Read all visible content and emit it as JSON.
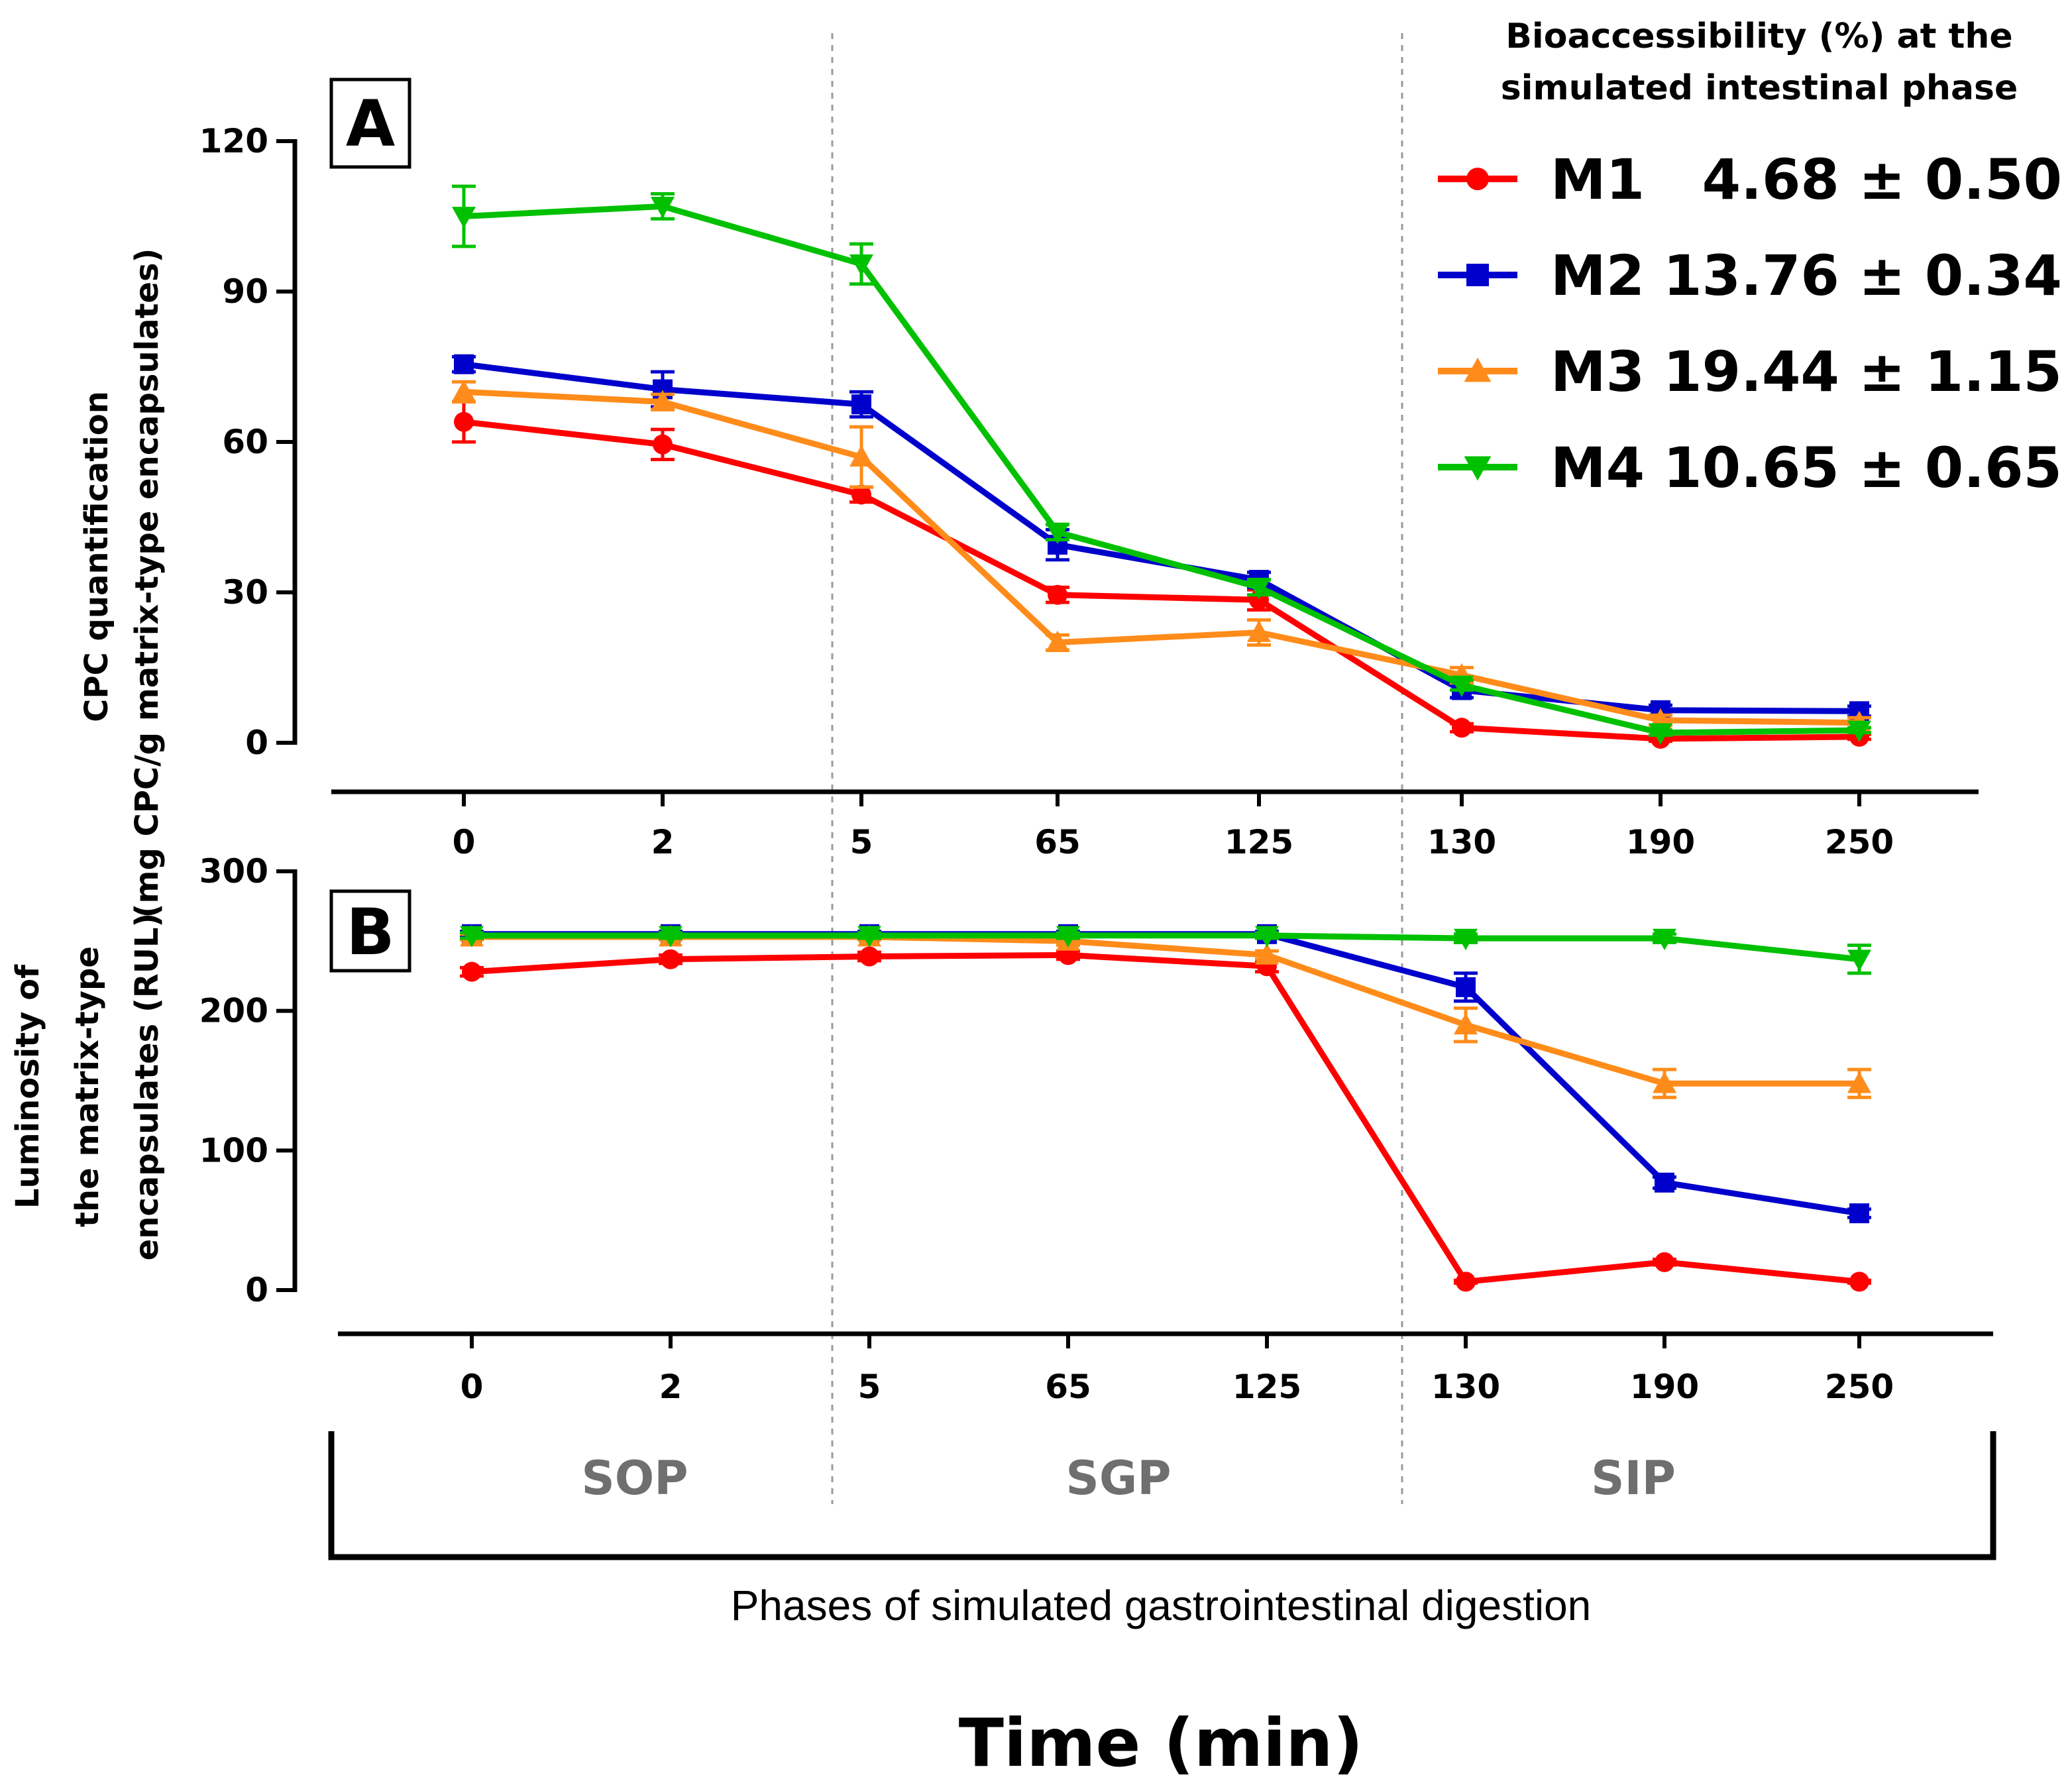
{
  "chart_data": [
    {
      "panel": "A",
      "type": "line",
      "ylabel": [
        "CPC quantification",
        "(mg CPC/g matrix-type  encapsulates)"
      ],
      "ylim": [
        0,
        120
      ],
      "yticks": [
        0,
        30,
        60,
        90,
        120
      ],
      "categories": [
        "0",
        "2",
        "5",
        "65",
        "125",
        "130",
        "190",
        "250"
      ],
      "series": [
        {
          "name": "M1",
          "color": "#ff0000",
          "marker": "circle",
          "values": [
            64,
            59.5,
            49.5,
            29.5,
            28.5,
            3,
            0.8,
            1.2
          ],
          "errors": [
            4,
            3,
            1.5,
            1.5,
            2,
            0.8,
            0.5,
            0.5
          ]
        },
        {
          "name": "M2",
          "color": "#0000cc",
          "marker": "square",
          "values": [
            75.5,
            70.5,
            67.5,
            39.5,
            32.5,
            10.5,
            6.5,
            6.3
          ],
          "errors": [
            1.5,
            3.5,
            2.5,
            3,
            1.5,
            1.5,
            1,
            1
          ]
        },
        {
          "name": "M3",
          "color": "#ff8c1a",
          "marker": "triangle-up",
          "values": [
            70,
            68,
            57,
            20,
            22,
            13.5,
            4.5,
            4
          ],
          "errors": [
            2,
            1.5,
            6,
            1.5,
            2.5,
            1.5,
            1,
            1
          ]
        },
        {
          "name": "M4",
          "color": "#00c000",
          "marker": "triangle-down",
          "values": [
            105,
            107,
            95.5,
            42,
            31,
            11.5,
            2,
            2.5
          ],
          "errors": [
            6,
            2.5,
            4,
            1.5,
            1.5,
            1,
            0.5,
            0.5
          ]
        }
      ]
    },
    {
      "panel": "B",
      "type": "line",
      "ylabel": [
        "Luminosity of",
        "the matrix-type",
        "encapsulates (RUL)"
      ],
      "ylim": [
        0,
        300
      ],
      "yticks": [
        0,
        100,
        200,
        300
      ],
      "categories": [
        "0",
        "2",
        "5",
        "65",
        "125",
        "130",
        "190",
        "250"
      ],
      "series": [
        {
          "name": "M1",
          "color": "#ff0000",
          "marker": "circle",
          "values": [
            228,
            237,
            239,
            240,
            232,
            6,
            20,
            6
          ],
          "errors": [
            3,
            3,
            3,
            3,
            4,
            1,
            2,
            1
          ]
        },
        {
          "name": "M2",
          "color": "#0000cc",
          "marker": "square",
          "values": [
            255,
            255,
            255,
            255,
            255,
            217,
            77,
            55
          ],
          "errors": [
            2,
            2,
            2,
            2,
            2,
            10,
            4,
            3
          ]
        },
        {
          "name": "M3",
          "color": "#ff8c1a",
          "marker": "triangle-up",
          "values": [
            253,
            253,
            253,
            250,
            240,
            190,
            148,
            148
          ],
          "errors": [
            2,
            2,
            2,
            3,
            3,
            12,
            10,
            10
          ]
        },
        {
          "name": "M4",
          "color": "#00c000",
          "marker": "triangle-down",
          "values": [
            254,
            254,
            254,
            254,
            254,
            252,
            252,
            237
          ],
          "errors": [
            2,
            2,
            2,
            2,
            2,
            3,
            3,
            10
          ]
        }
      ]
    }
  ],
  "legend": {
    "title_lines": [
      "Bioaccessibility (%) at the",
      "simulated intestinal phase"
    ],
    "entries": [
      {
        "name": "M1",
        "value": "4.68 ± 0.50",
        "color": "#ff0000",
        "marker": "circle"
      },
      {
        "name": "M2",
        "value": "13.76 ± 0.34",
        "color": "#0000cc",
        "marker": "square"
      },
      {
        "name": "M3",
        "value": "19.44 ± 1.15",
        "color": "#ff8c1a",
        "marker": "triangle-up"
      },
      {
        "name": "M4",
        "value": "10.65 ± 0.65",
        "color": "#00c000",
        "marker": "triangle-down"
      }
    ]
  },
  "phases": [
    "SOP",
    "SGP",
    "SIP"
  ],
  "phases_caption": "Phases of simulated gastrointestinal digestion",
  "xlabel": "Time (min)",
  "panel_labels": {
    "a": "A",
    "b": "B"
  }
}
